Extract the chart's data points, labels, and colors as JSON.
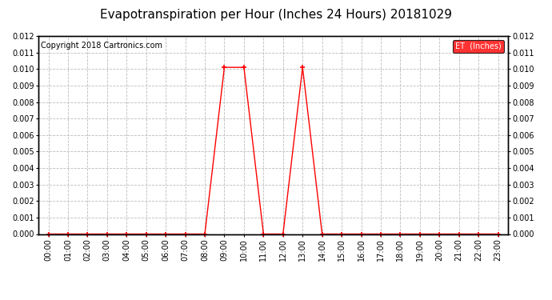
{
  "title": "Evapotranspiration per Hour (Inches 24 Hours) 20181029",
  "copyright": "Copyright 2018 Cartronics.com",
  "legend_label": "ET  (Inches)",
  "legend_bg": "#ff0000",
  "legend_text_color": "#ffffff",
  "line_color": "#ff0000",
  "marker": "+",
  "marker_size": 5,
  "marker_linewidth": 1.2,
  "background_color": "#ffffff",
  "plot_bg_color": "#ffffff",
  "grid_color": "#bbbbbb",
  "ylim": [
    0,
    0.012
  ],
  "yticks": [
    0.0,
    0.001,
    0.002,
    0.003,
    0.004,
    0.005,
    0.006,
    0.007,
    0.008,
    0.009,
    0.01,
    0.011,
    0.012
  ],
  "hours": [
    "00:00",
    "01:00",
    "02:00",
    "03:00",
    "04:00",
    "05:00",
    "06:00",
    "07:00",
    "08:00",
    "09:00",
    "10:00",
    "11:00",
    "12:00",
    "13:00",
    "14:00",
    "15:00",
    "16:00",
    "17:00",
    "18:00",
    "19:00",
    "20:00",
    "21:00",
    "22:00",
    "23:00"
  ],
  "values": [
    0.0,
    0.0,
    0.0,
    0.0,
    0.0,
    0.0,
    0.0,
    0.0,
    0.0,
    0.0101,
    0.0101,
    0.0,
    0.0,
    0.0101,
    0.0,
    0.0,
    0.0,
    0.0,
    0.0,
    0.0,
    0.0,
    0.0,
    0.0,
    0.0
  ],
  "title_fontsize": 11,
  "copyright_fontsize": 7,
  "tick_fontsize": 7,
  "linewidth": 1.0
}
